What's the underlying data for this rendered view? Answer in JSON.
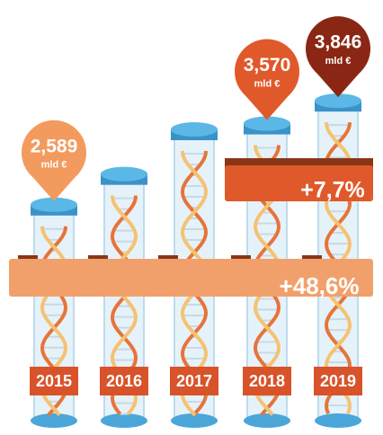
{
  "chart_data": {
    "type": "bar",
    "categories": [
      "2015",
      "2016",
      "2017",
      "2018",
      "2019"
    ],
    "values": [
      2.589,
      2.96,
      3.5,
      3.57,
      3.846
    ],
    "value_labels": [
      "2,589",
      null,
      null,
      "3,570",
      "3,846"
    ],
    "unit": "mld €",
    "pin_colors": [
      "#f39a5e",
      null,
      null,
      "#e0592a",
      "#8a2714"
    ],
    "annotations": [
      {
        "text": "+48,6%"
      },
      {
        "text": "+7,7%"
      }
    ]
  }
}
